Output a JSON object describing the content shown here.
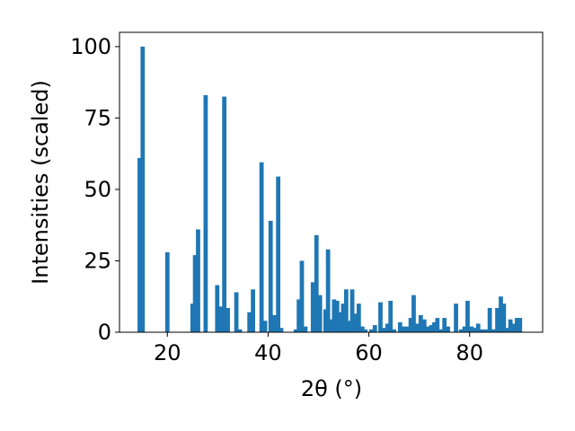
{
  "chart_data": {
    "type": "bar",
    "xlabel": "2θ (°)",
    "ylabel": "Intensities (scaled)",
    "xlim": [
      10.5,
      94.5
    ],
    "ylim": [
      0,
      105
    ],
    "bar_color": "#1f77b4",
    "grid": false,
    "legend": "none",
    "x_ticks": [
      20,
      40,
      60,
      80
    ],
    "y_ticks": [
      0,
      25,
      50,
      75,
      100
    ],
    "bar_width": 0.85,
    "points": [
      {
        "x": 14.5,
        "y": 61
      },
      {
        "x": 15.1,
        "y": 100
      },
      {
        "x": 20.0,
        "y": 28
      },
      {
        "x": 25.0,
        "y": 10
      },
      {
        "x": 25.5,
        "y": 27
      },
      {
        "x": 26.1,
        "y": 36
      },
      {
        "x": 27.6,
        "y": 83
      },
      {
        "x": 29.9,
        "y": 16.5
      },
      {
        "x": 30.6,
        "y": 9
      },
      {
        "x": 31.3,
        "y": 82.5
      },
      {
        "x": 32.0,
        "y": 8.5
      },
      {
        "x": 33.7,
        "y": 14
      },
      {
        "x": 34.4,
        "y": 1
      },
      {
        "x": 36.3,
        "y": 7
      },
      {
        "x": 37.0,
        "y": 15
      },
      {
        "x": 38.7,
        "y": 59.5
      },
      {
        "x": 39.4,
        "y": 4
      },
      {
        "x": 40.5,
        "y": 39
      },
      {
        "x": 41.3,
        "y": 6
      },
      {
        "x": 42.0,
        "y": 54.5
      },
      {
        "x": 42.6,
        "y": 1.5
      },
      {
        "x": 45.5,
        "y": 1
      },
      {
        "x": 46.1,
        "y": 11.5
      },
      {
        "x": 46.7,
        "y": 25
      },
      {
        "x": 47.4,
        "y": 2
      },
      {
        "x": 48.9,
        "y": 17.5
      },
      {
        "x": 49.6,
        "y": 34
      },
      {
        "x": 50.3,
        "y": 13
      },
      {
        "x": 51.4,
        "y": 8
      },
      {
        "x": 51.9,
        "y": 29
      },
      {
        "x": 52.5,
        "y": 4.5
      },
      {
        "x": 53.1,
        "y": 11.5
      },
      {
        "x": 53.7,
        "y": 11
      },
      {
        "x": 54.3,
        "y": 7
      },
      {
        "x": 54.9,
        "y": 10
      },
      {
        "x": 55.5,
        "y": 15
      },
      {
        "x": 56.1,
        "y": 4
      },
      {
        "x": 56.7,
        "y": 15
      },
      {
        "x": 57.3,
        "y": 6.5
      },
      {
        "x": 58.0,
        "y": 10
      },
      {
        "x": 58.7,
        "y": 2
      },
      {
        "x": 59.3,
        "y": 1
      },
      {
        "x": 60.5,
        "y": 1
      },
      {
        "x": 61.2,
        "y": 2.5
      },
      {
        "x": 62.3,
        "y": 10.5
      },
      {
        "x": 63.0,
        "y": 1.5
      },
      {
        "x": 63.7,
        "y": 3
      },
      {
        "x": 64.3,
        "y": 11
      },
      {
        "x": 65.0,
        "y": 1
      },
      {
        "x": 66.2,
        "y": 3.5
      },
      {
        "x": 67.0,
        "y": 2
      },
      {
        "x": 67.7,
        "y": 2
      },
      {
        "x": 68.3,
        "y": 5
      },
      {
        "x": 68.9,
        "y": 13
      },
      {
        "x": 69.6,
        "y": 3
      },
      {
        "x": 70.3,
        "y": 6
      },
      {
        "x": 71.0,
        "y": 4.5
      },
      {
        "x": 71.7,
        "y": 2
      },
      {
        "x": 72.4,
        "y": 2.5
      },
      {
        "x": 73.0,
        "y": 3.5
      },
      {
        "x": 73.6,
        "y": 5
      },
      {
        "x": 74.3,
        "y": 1
      },
      {
        "x": 75.0,
        "y": 5
      },
      {
        "x": 75.7,
        "y": 2
      },
      {
        "x": 77.3,
        "y": 10
      },
      {
        "x": 78.3,
        "y": 1
      },
      {
        "x": 79.0,
        "y": 2
      },
      {
        "x": 79.6,
        "y": 11
      },
      {
        "x": 80.4,
        "y": 2
      },
      {
        "x": 81.0,
        "y": 1.5
      },
      {
        "x": 81.7,
        "y": 3
      },
      {
        "x": 82.5,
        "y": 1
      },
      {
        "x": 83.3,
        "y": 1
      },
      {
        "x": 84.0,
        "y": 8.5
      },
      {
        "x": 84.8,
        "y": 1
      },
      {
        "x": 85.5,
        "y": 8.5
      },
      {
        "x": 86.2,
        "y": 12.5
      },
      {
        "x": 86.8,
        "y": 10
      },
      {
        "x": 87.5,
        "y": 1.5
      },
      {
        "x": 88.1,
        "y": 4.5
      },
      {
        "x": 88.8,
        "y": 3
      },
      {
        "x": 89.4,
        "y": 5
      },
      {
        "x": 90.0,
        "y": 5
      }
    ]
  }
}
